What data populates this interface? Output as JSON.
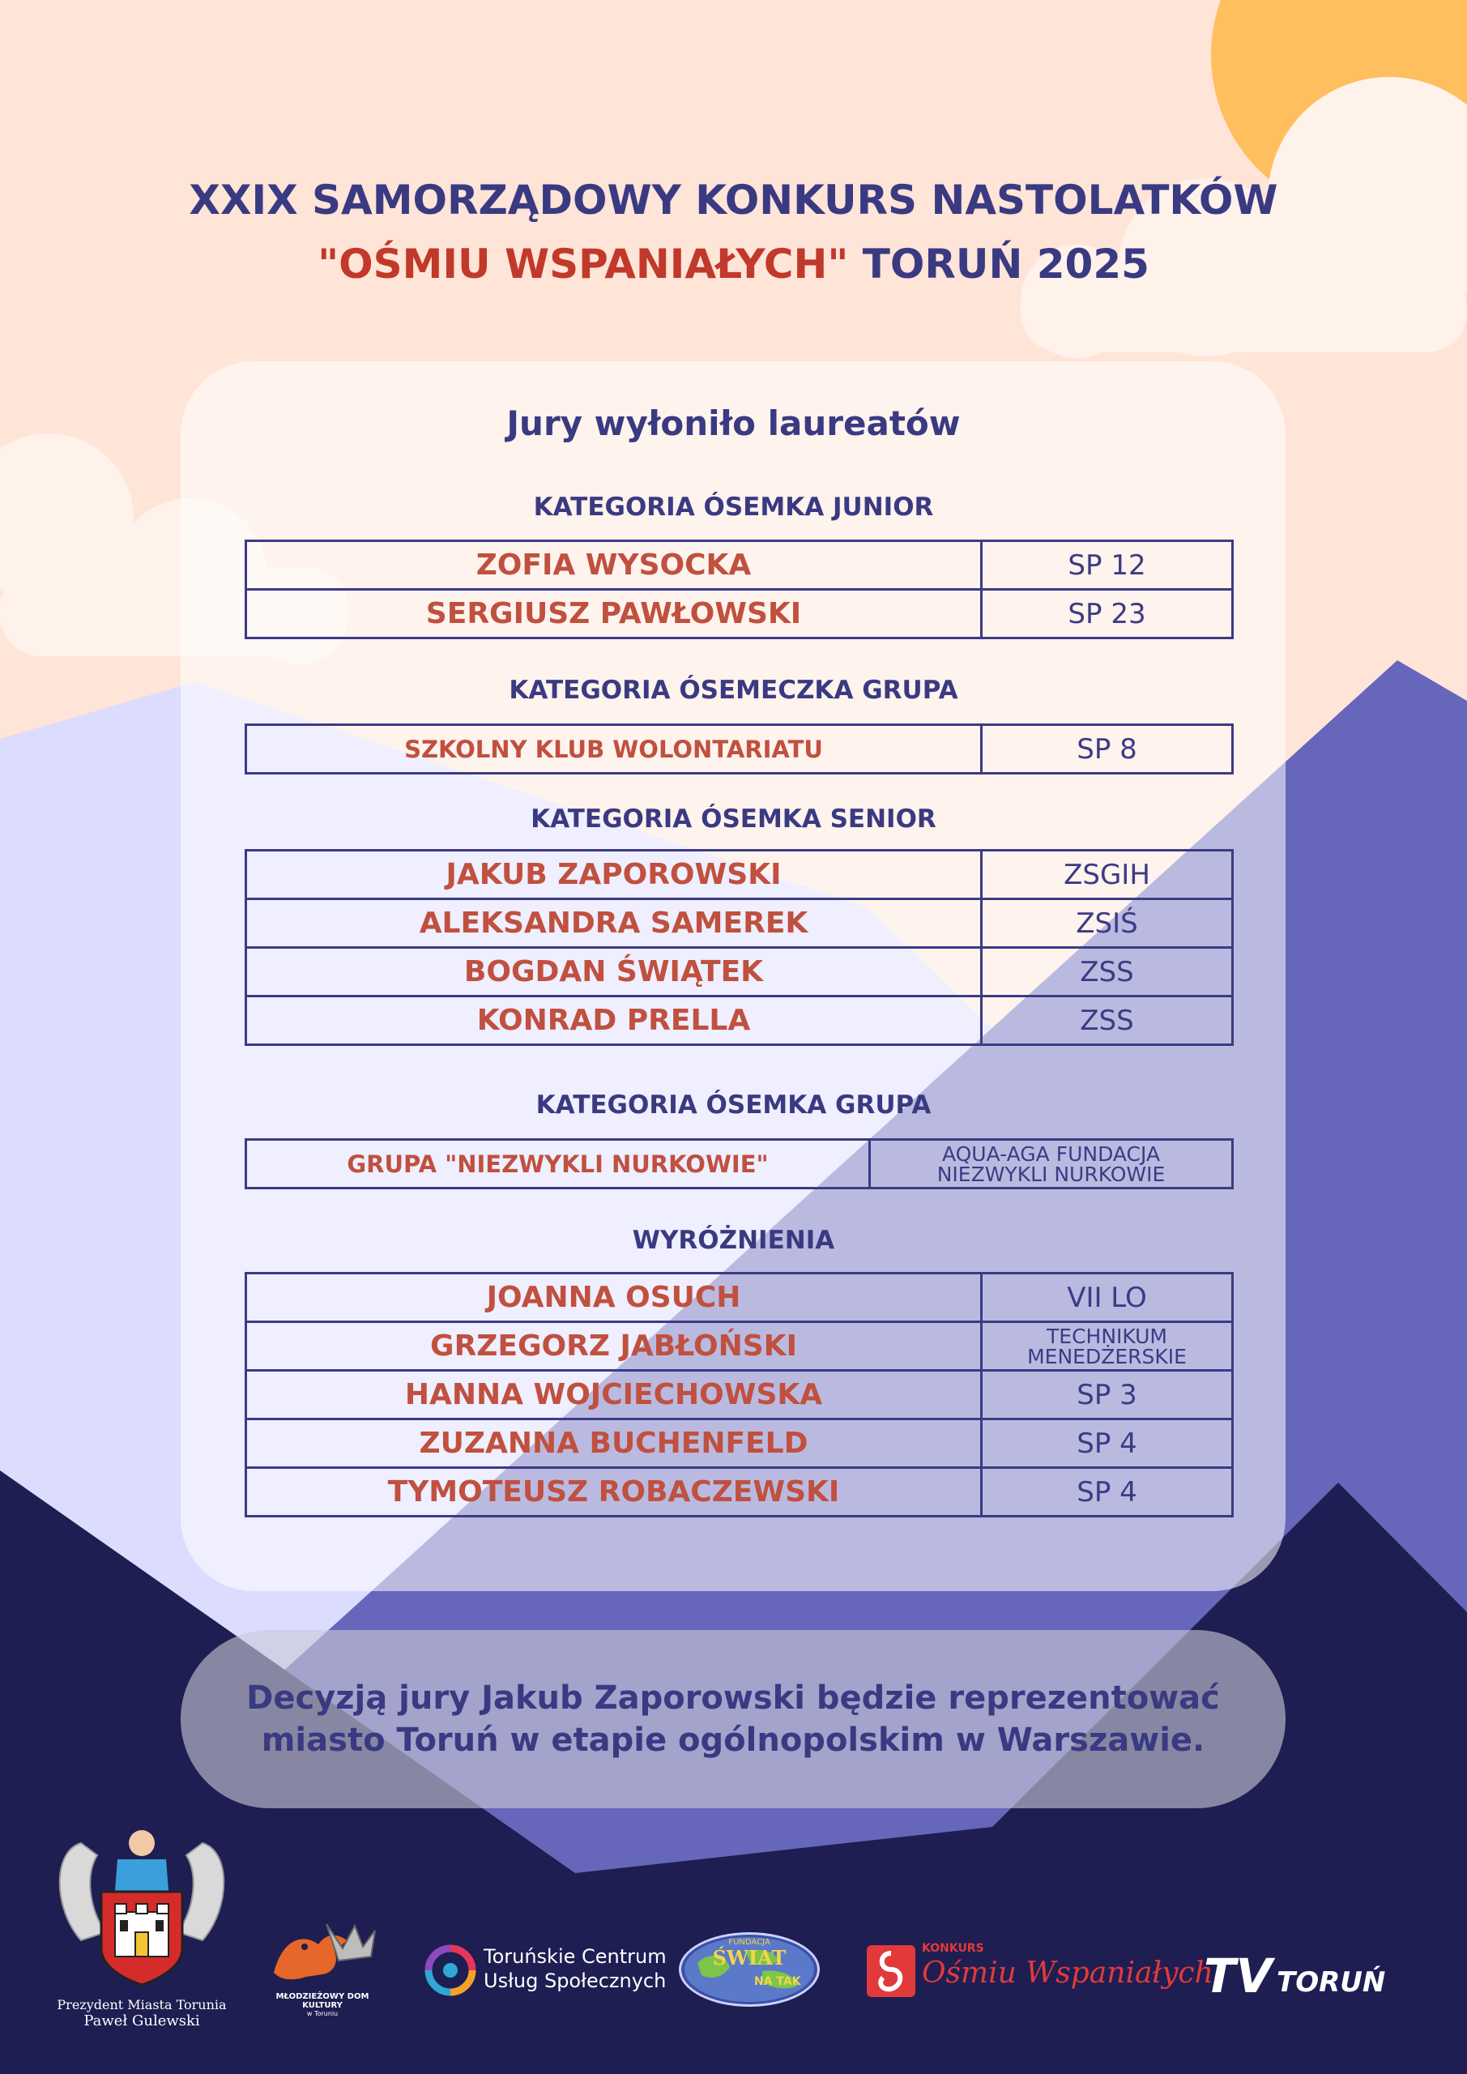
{
  "title": {
    "line1": "XXIX SAMORZĄDOWY KONKURS NASTOLATKÓW",
    "line2_red": "\"OŚMIU WSPANIAŁYCH\"",
    "line2_rest": " TORUŃ 2025"
  },
  "card": {
    "heading": "Jury wyłoniło laureatów",
    "categories": [
      {
        "title": "KATEGORIA ÓSEMKA JUNIOR",
        "rows": [
          {
            "name": "ZOFIA WYSOCKA",
            "school": "SP 12"
          },
          {
            "name": "SERGIUSZ PAWŁOWSKI",
            "school": "SP 23"
          }
        ]
      },
      {
        "title": "KATEGORIA ÓSEMECZKA GRUPA",
        "rows": [
          {
            "name": "SZKOLNY KLUB WOLONTARIATU",
            "school": "SP 8"
          }
        ]
      },
      {
        "title": "KATEGORIA ÓSEMKA SENIOR",
        "rows": [
          {
            "name": "JAKUB ZAPOROWSKI",
            "school": "ZSGIH"
          },
          {
            "name": "ALEKSANDRA SAMEREK",
            "school": "ZSIŚ"
          },
          {
            "name": "BOGDAN ŚWIĄTEK",
            "school": "ZSS"
          },
          {
            "name": "KONRAD PRELLA",
            "school": "ZSS"
          }
        ]
      },
      {
        "title": "KATEGORIA ÓSEMKA GRUPA",
        "rows": [
          {
            "name": "GRUPA \"NIEZWYKLI NURKOWIE\"",
            "school_line1": "AQUA-AGA FUNDACJA",
            "school_line2": "NIEZWYKLI NURKOWIE"
          }
        ]
      },
      {
        "title": "WYRÓŻNIENIA",
        "rows": [
          {
            "name": "JOANNA OSUCH",
            "school": "VII LO"
          },
          {
            "name": "GRZEGORZ JABŁOŃSKI",
            "school_line1": "TECHNIKUM",
            "school_line2": "MENEDŻERSKIE"
          },
          {
            "name": "HANNA WOJCIECHOWSKA",
            "school": "SP 3"
          },
          {
            "name": "ZUZANNA BUCHENFELD",
            "school": "SP 4"
          },
          {
            "name": "TYMOTEUSZ ROBACZEWSKI",
            "school": "SP 4"
          }
        ]
      }
    ]
  },
  "note": {
    "line1": "Decyzją jury Jakub Zaporowski będzie reprezentować",
    "line2": "miasto Toruń w etapie ogólnopolskim w Warszawie."
  },
  "logos": {
    "president_line1": "Prezydent Miasta Torunia",
    "president_line2": "Paweł Gulewski",
    "mdk_line1": "MŁODZIEŻOWY DOM KULTURY",
    "mdk_line2": "w Toruniu",
    "tcus_line1": "Toruńskie Centrum",
    "tcus_line2": "Usług Społecznych",
    "fundacja_small": "FUNDACJA",
    "fundacja_main": "ŚWIAT",
    "fundacja_tak": "NA TAK",
    "konkurs_small": "KONKURS",
    "konkurs_main": "Ośmiu Wspaniałych",
    "tv_main": "TV",
    "tv_city": "TORUŃ"
  },
  "colors": {
    "navy": "#3a3a82",
    "red": "#c0392b",
    "peach": "#ffe4d8",
    "sun": "#ffbf5e",
    "mountain_dark": "#1e1e52",
    "mountain_mid": "#6666bb",
    "mountain_light": "#dcdcff"
  }
}
